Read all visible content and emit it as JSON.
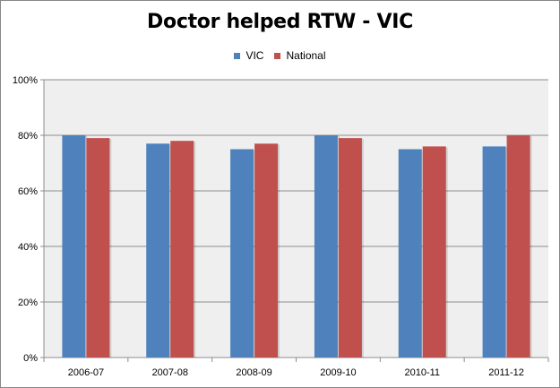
{
  "chart_data": {
    "type": "bar",
    "title": "Doctor helped RTW - VIC",
    "categories": [
      "2006-07",
      "2007-08",
      "2008-09",
      "2009-10",
      "2010-11",
      "2011-12"
    ],
    "series": [
      {
        "name": "VIC",
        "color": "#4F81BD",
        "values": [
          80,
          77,
          75,
          80,
          75,
          76
        ]
      },
      {
        "name": "National",
        "color": "#C0504D",
        "values": [
          79,
          78,
          77,
          79,
          76,
          80
        ]
      }
    ],
    "ylim": [
      0,
      100
    ],
    "yticks": [
      0,
      20,
      40,
      60,
      80,
      100
    ],
    "ytick_labels": [
      "0%",
      "20%",
      "40%",
      "60%",
      "80%",
      "100%"
    ],
    "xlabel": "",
    "ylabel": "",
    "grid": true,
    "legend_position": "top",
    "plot_background": "#EFEFEF"
  }
}
